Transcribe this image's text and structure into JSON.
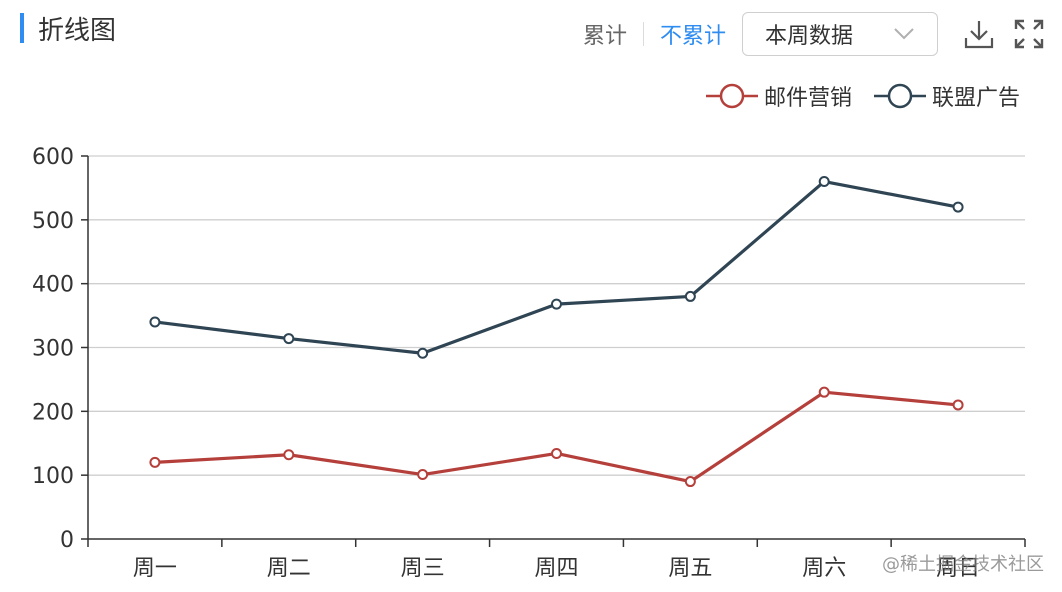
{
  "title": "折线图",
  "toolbar": {
    "cumulative_label": "累计",
    "non_cumulative_label": "不累计",
    "active_toggle": "不累计",
    "select_value": "本周数据",
    "download_icon": "download-icon",
    "fullscreen_icon": "fullscreen-icon",
    "accent_color": "#2f8cf0"
  },
  "watermark": "@稀土掘金技术社区",
  "chart_data": {
    "type": "line",
    "categories": [
      "周一",
      "周二",
      "周三",
      "周四",
      "周五",
      "周六",
      "周日"
    ],
    "series": [
      {
        "name": "邮件营销",
        "color": "#b5403b",
        "values": [
          120,
          132,
          101,
          134,
          90,
          230,
          210
        ]
      },
      {
        "name": "联盟广告",
        "color": "#2f4554",
        "values": [
          340,
          314,
          291,
          368,
          380,
          560,
          520
        ]
      }
    ],
    "ylim": [
      0,
      600
    ],
    "yticks": [
      "0",
      "100",
      "200",
      "300",
      "400",
      "500",
      "600"
    ],
    "grid": true,
    "legend_position": "top-right"
  }
}
